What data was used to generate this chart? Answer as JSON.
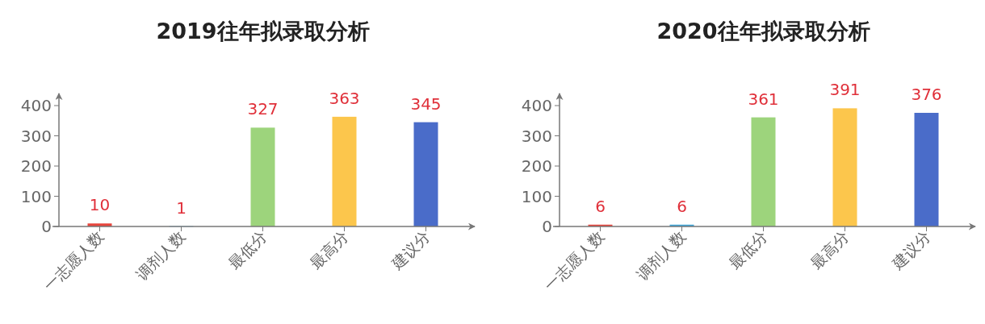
{
  "chart_data": [
    {
      "type": "bar",
      "title": "2019往年拟录取分析",
      "categories": [
        "一志愿人数",
        "调剂人数",
        "最低分",
        "最高分",
        "建议分"
      ],
      "values": [
        10,
        1,
        327,
        363,
        345
      ],
      "colors": [
        "#e8453c",
        "#3fa6d9",
        "#9dd47c",
        "#fcc64c",
        "#4a6cc9"
      ],
      "ylim": [
        0,
        440
      ],
      "yticks": [
        0,
        100,
        200,
        300,
        400
      ],
      "data_labels": true
    },
    {
      "type": "bar",
      "title": "2020往年拟录取分析",
      "categories": [
        "一志愿人数",
        "调剂人数",
        "最低分",
        "最高分",
        "建议分"
      ],
      "values": [
        6,
        6,
        361,
        391,
        376
      ],
      "colors": [
        "#e8453c",
        "#3fa6d9",
        "#9dd47c",
        "#fcc64c",
        "#4a6cc9"
      ],
      "ylim": [
        0,
        440
      ],
      "yticks": [
        0,
        100,
        200,
        300,
        400
      ],
      "data_labels": true
    }
  ]
}
